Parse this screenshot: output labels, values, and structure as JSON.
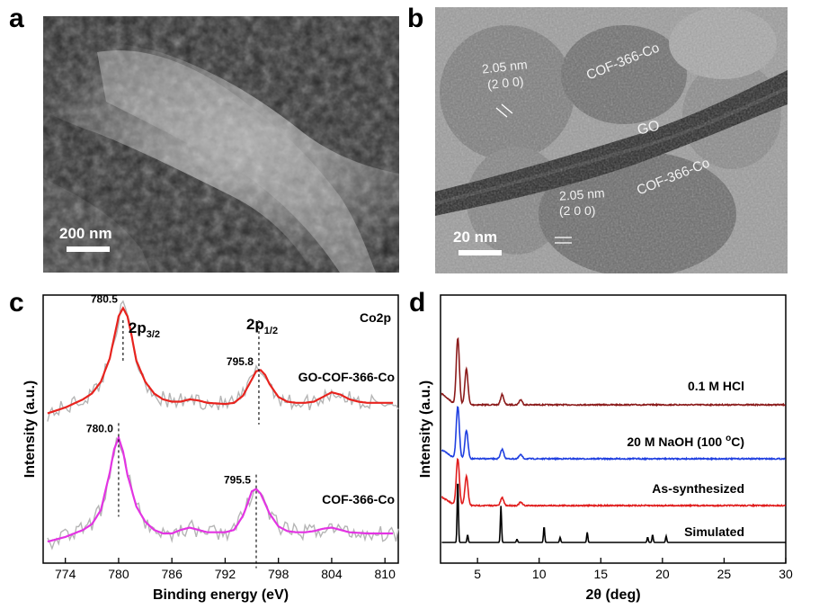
{
  "panels": {
    "a": {
      "letter": "a",
      "scale_label": "200 nm"
    },
    "b": {
      "letter": "b",
      "scale_label": "20 nm",
      "labels": {
        "cof_top": "COF-366-Co",
        "go": "GO",
        "cof_bottom": "COF-366-Co",
        "spacing_top": "2.05 nm",
        "miller_top": "(2 0 0)",
        "spacing_bottom": "2.05 nm",
        "miller_bottom": "(2 0 0)"
      }
    },
    "c": {
      "letter": "c"
    },
    "d": {
      "letter": "d"
    }
  },
  "chart_data": [
    {
      "panel": "c",
      "type": "line",
      "xlabel": "Binding energy (eV)",
      "ylabel": "Intensity (a.u.)",
      "xlim": [
        771.5,
        811.5
      ],
      "xticks": [
        774,
        780,
        786,
        792,
        798,
        804,
        810
      ],
      "grid": false,
      "annotation": "Co2p",
      "peak_labels": [
        "2p3/2",
        "2p1/2"
      ],
      "series": [
        {
          "name": "GO-COF-366-Co",
          "color": "#e8231e",
          "raw_color": "#b5b5b5",
          "peaks": [
            {
              "label": "780.5",
              "x": 780.5
            },
            {
              "label": "795.8",
              "x": 795.8
            }
          ],
          "x": [
            772,
            774,
            776,
            777,
            778,
            779,
            779.5,
            780,
            780.5,
            781,
            781.5,
            782,
            783,
            784,
            785,
            786,
            787,
            788,
            789,
            790,
            792,
            793,
            794,
            795,
            795.5,
            796,
            796.5,
            797,
            798,
            799,
            800,
            801,
            802,
            803,
            804,
            805,
            806,
            807,
            808,
            809,
            810,
            811
          ],
          "y": [
            0.05,
            0.1,
            0.17,
            0.22,
            0.32,
            0.52,
            0.7,
            0.88,
            0.95,
            0.88,
            0.7,
            0.5,
            0.32,
            0.22,
            0.17,
            0.15,
            0.15,
            0.17,
            0.16,
            0.14,
            0.13,
            0.14,
            0.2,
            0.34,
            0.41,
            0.42,
            0.38,
            0.3,
            0.19,
            0.15,
            0.14,
            0.14,
            0.15,
            0.19,
            0.23,
            0.21,
            0.17,
            0.15,
            0.14,
            0.14,
            0.14,
            0.14
          ]
        },
        {
          "name": "COF-366-Co",
          "color": "#e334e3",
          "raw_color": "#b5b5b5",
          "peaks": [
            {
              "label": "780.0",
              "x": 780.0
            },
            {
              "label": "795.5",
              "x": 795.5
            }
          ],
          "x": [
            772,
            774,
            776,
            777,
            778,
            779,
            779.5,
            780,
            780.5,
            781,
            782,
            783,
            784,
            785,
            786,
            787,
            788,
            789,
            790,
            792,
            793,
            794,
            794.5,
            795,
            795.5,
            796,
            797,
            798,
            799,
            800,
            801,
            802,
            803,
            804,
            805,
            806,
            808,
            810,
            811
          ],
          "y": [
            0.03,
            0.07,
            0.13,
            0.18,
            0.3,
            0.62,
            0.82,
            0.92,
            0.8,
            0.6,
            0.33,
            0.2,
            0.13,
            0.1,
            0.1,
            0.13,
            0.15,
            0.13,
            0.11,
            0.11,
            0.13,
            0.25,
            0.35,
            0.46,
            0.48,
            0.44,
            0.27,
            0.16,
            0.12,
            0.11,
            0.11,
            0.12,
            0.14,
            0.15,
            0.13,
            0.11,
            0.1,
            0.1,
            0.1
          ]
        }
      ]
    },
    {
      "panel": "d",
      "type": "line",
      "xlabel": "2θ (deg)",
      "ylabel": "Intensity (a.u.)",
      "xlim": [
        2,
        30
      ],
      "xticks": [
        5,
        10,
        15,
        20,
        25,
        30
      ],
      "grid": false,
      "series": [
        {
          "name": "0.1 M HCl",
          "color": "#8b1a1a",
          "peaks": [
            [
              3.4,
              0.78
            ],
            [
              4.1,
              0.42
            ],
            [
              7.0,
              0.12
            ],
            [
              8.5,
              0.06
            ]
          ]
        },
        {
          "name": "20 M NaOH (100 °C)",
          "color": "#1f3fe0",
          "peaks": [
            [
              3.4,
              0.78
            ],
            [
              4.1,
              0.42
            ],
            [
              7.0,
              0.14
            ],
            [
              8.5,
              0.06
            ]
          ]
        },
        {
          "name": "As-synthesized",
          "color": "#e01c1c",
          "peaks": [
            [
              3.4,
              0.72
            ],
            [
              4.1,
              0.45
            ],
            [
              7.0,
              0.12
            ],
            [
              8.5,
              0.05
            ]
          ]
        },
        {
          "name": "Simulated",
          "color": "#000000",
          "peaks": [
            [
              3.4,
              1.0
            ],
            [
              4.2,
              0.12
            ],
            [
              6.9,
              0.58
            ],
            [
              8.2,
              0.05
            ],
            [
              10.4,
              0.25
            ],
            [
              11.7,
              0.08
            ],
            [
              13.9,
              0.16
            ],
            [
              18.8,
              0.08
            ],
            [
              19.2,
              0.12
            ],
            [
              20.3,
              0.1
            ]
          ]
        }
      ]
    }
  ]
}
